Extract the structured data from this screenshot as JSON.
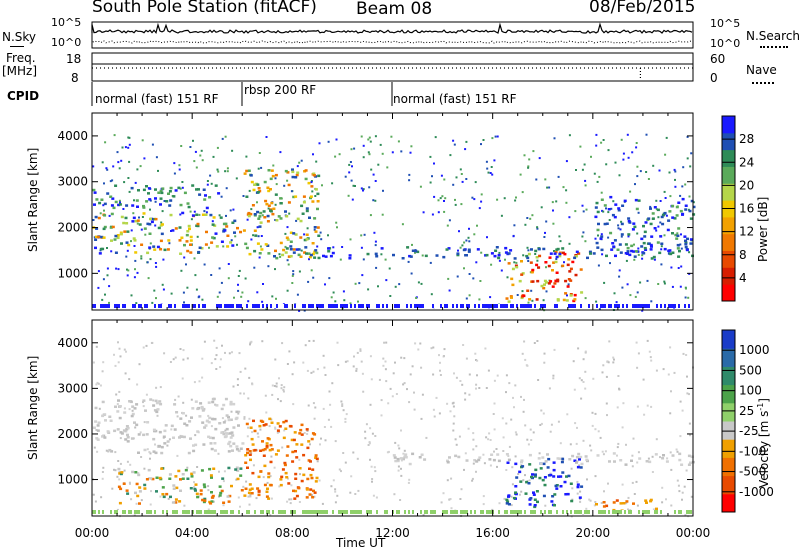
{
  "header": {
    "station": "South Pole Station (fitACF)",
    "beam": "Beam 08",
    "date": "08/Feb/2015"
  },
  "noise_panel": {
    "left_label": "N.Sky",
    "right_label": "N.Search",
    "left_ticks": [
      "10^5",
      "10^0"
    ],
    "right_ticks": [
      "10^5",
      "10^0"
    ]
  },
  "freq_panel": {
    "left_label_line1": "Freq.",
    "left_label_line2": "[MHz]",
    "right_label": "Nave",
    "left_ticks": [
      "18",
      "8"
    ],
    "right_ticks": [
      "60",
      "0"
    ]
  },
  "cpid": {
    "label": "CPID",
    "segments": [
      {
        "label": "normal (fast) 151 RF",
        "start_hour": 0,
        "end_hour": 6
      },
      {
        "label": "rbsp 200 RF",
        "start_hour": 6,
        "end_hour": 12
      },
      {
        "label": "normal (fast) 151 RF",
        "start_hour": 12,
        "end_hour": 24
      }
    ]
  },
  "chart_data": [
    {
      "type": "heatmap",
      "title": "",
      "xlabel": "Time UT",
      "ylabel": "Slant Range [km]",
      "xlim": [
        0,
        24
      ],
      "ylim": [
        200,
        4500
      ],
      "x_ticks": [
        "00:00",
        "04:00",
        "08:00",
        "12:00",
        "16:00",
        "20:00",
        "00:00"
      ],
      "y_ticks": [
        1000,
        2000,
        3000,
        4000
      ],
      "colorbar": {
        "label": "Power [dB]",
        "ticks": [
          "4",
          "8",
          "12",
          "16",
          "20",
          "24",
          "28"
        ],
        "colors": [
          "#1a1aff",
          "#1f4fb3",
          "#2e8b57",
          "#5aaa5a",
          "#b5d64a",
          "#f0c800",
          "#f2a100",
          "#f07800",
          "#e84a00",
          "#d81d00",
          "#ff0000"
        ]
      },
      "bands": [
        {
          "t0": 0.0,
          "t1": 5.9,
          "r0": 1450,
          "r1": 2350,
          "level": "mixed-green-orange"
        },
        {
          "t0": 0.0,
          "t1": 5.0,
          "r0": 2450,
          "r1": 2950,
          "level": "blue-green"
        },
        {
          "t0": 6.0,
          "t1": 9.0,
          "r0": 1300,
          "r1": 3300,
          "level": "green-orange"
        },
        {
          "t0": 16.5,
          "t1": 19.5,
          "r0": 400,
          "r1": 1500,
          "level": "orange-red"
        },
        {
          "t0": 8.0,
          "t1": 24.0,
          "r0": 1350,
          "r1": 1600,
          "level": "blue"
        },
        {
          "t0": 20.0,
          "t1": 24.0,
          "r0": 1500,
          "r1": 2700,
          "level": "blue-green"
        }
      ]
    },
    {
      "type": "heatmap",
      "title": "",
      "xlabel": "Time UT",
      "ylabel": "Slant Range [km]",
      "xlim": [
        0,
        24
      ],
      "ylim": [
        200,
        4500
      ],
      "x_ticks": [
        "00:00",
        "04:00",
        "08:00",
        "12:00",
        "16:00",
        "20:00",
        "00:00"
      ],
      "y_ticks": [
        1000,
        2000,
        3000,
        4000
      ],
      "colorbar": {
        "label": "Velocity [m s",
        "label_sup": "-1",
        "label_close": "]",
        "ticks": [
          "1000",
          "500",
          "100",
          "25",
          "-25",
          "-100",
          "-500",
          "-1000"
        ],
        "colors": [
          "#1a3cc8",
          "#2a6aa8",
          "#2f8a6a",
          "#4ca34a",
          "#8fd06a",
          "#c8c8c8",
          "#f0a000",
          "#f07000",
          "#e84a00",
          "#ff0000"
        ]
      },
      "bands": [
        {
          "t0": 0.0,
          "t1": 6.0,
          "r0": 1600,
          "r1": 2800,
          "level": "grey"
        },
        {
          "t0": 1.0,
          "t1": 6.0,
          "r0": 500,
          "r1": 1300,
          "level": "orange-green"
        },
        {
          "t0": 6.0,
          "t1": 9.0,
          "r0": 600,
          "r1": 2400,
          "level": "orange"
        },
        {
          "t0": 16.5,
          "t1": 19.5,
          "r0": 400,
          "r1": 1500,
          "level": "blue"
        },
        {
          "t0": 12.0,
          "t1": 24.0,
          "r0": 1350,
          "r1": 1600,
          "level": "grey"
        },
        {
          "t0": 20.0,
          "t1": 22.5,
          "r0": 300,
          "r1": 600,
          "level": "orange"
        }
      ]
    }
  ]
}
